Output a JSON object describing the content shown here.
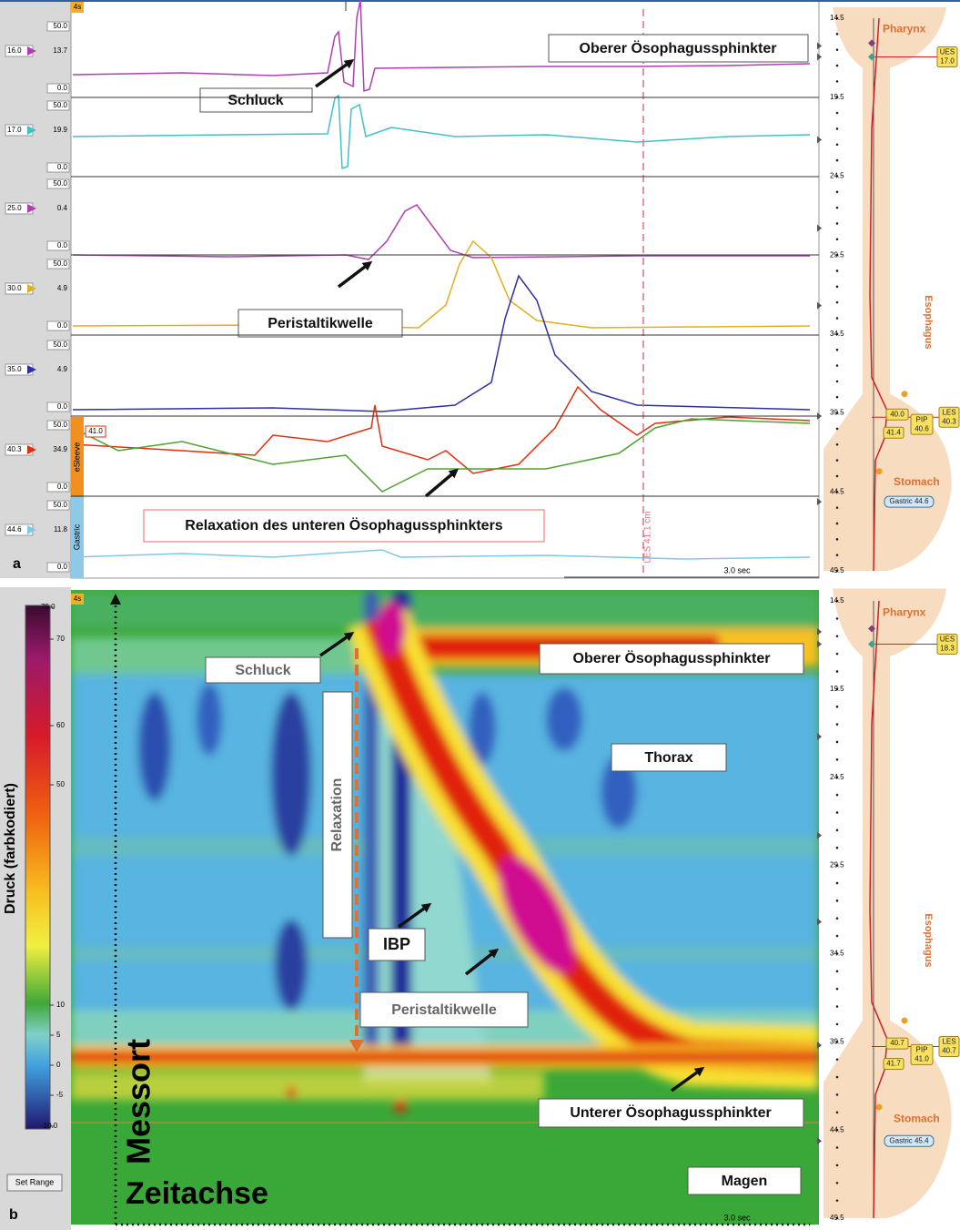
{
  "panel_a": {
    "letter": "a",
    "time_label": "4s",
    "channels": [
      {
        "position": "16.0",
        "value": "13.7",
        "max": "50.0",
        "min": "0.0"
      },
      {
        "position": "17.0",
        "value": "19.9",
        "max": "50.0",
        "min": "0.0"
      },
      {
        "position": "25.0",
        "value": "0.4",
        "max": "50.0",
        "min": "0.0"
      },
      {
        "position": "30.0",
        "value": "4.9",
        "max": "50.0",
        "min": "0.0"
      },
      {
        "position": "35.0",
        "value": "4.9",
        "max": "50.0",
        "min": "0.0"
      },
      {
        "position": "40.3",
        "value": "34.9",
        "max": "50.0",
        "min": "0.0"
      },
      {
        "position": "44.6",
        "value": "11.8",
        "max": "50.0",
        "min": "0.0"
      }
    ],
    "esleeve": {
      "label": "eSleeve",
      "value": "41.0"
    },
    "gastric_label": "Gastric",
    "les_marker": "LES 41.1 cm",
    "time_scale": "3.0 sec",
    "annotations": {
      "ues": "Oberer Ösophagussphinkter",
      "swallow": "Schluck",
      "peristalsis": "Peristaltikwelle",
      "les_relaxation": "Relaxation des unteren Ösophagussphinkters"
    }
  },
  "anatomy_a": {
    "depths": [
      "14.5",
      "19.5",
      "24.5",
      "29.5",
      "34.5",
      "39.5",
      "44.5",
      "49.5"
    ],
    "regions": {
      "pharynx": "Pharynx",
      "esophagus": "Esophagus",
      "stomach": "Stomach"
    },
    "ues": {
      "label": "UES",
      "value": "17.0"
    },
    "les": {
      "label": "LES",
      "value": "40.3"
    },
    "pip": {
      "label": "PIP",
      "value": "40.6"
    },
    "les_top": "40.0",
    "les_bottom": "41.4",
    "gastric": "Gastric 44.6"
  },
  "panel_b": {
    "letter": "b",
    "time_label": "4s",
    "colorbar": {
      "title": "Druck (farbkodiert)",
      "ticks": [
        "75.0",
        "70",
        "60",
        "50",
        "10",
        "5",
        "0",
        "-5",
        "-10.0"
      ],
      "button": "Set Range"
    },
    "annotations": {
      "swallow": "Schluck",
      "ues": "Oberer Ösophagussphinkter",
      "thorax": "Thorax",
      "relaxation": "Relaxation",
      "ibp": "IBP",
      "peristalsis": "Peristaltikwelle",
      "les": "Unterer Ösophagussphinkter",
      "stomach": "Magen"
    },
    "axes": {
      "position": "Messort",
      "time": "Zeitachse"
    },
    "time_scale": "3.0 sec"
  },
  "anatomy_b": {
    "depths": [
      "14.5",
      "19.5",
      "24.5",
      "29.5",
      "34.5",
      "39.5",
      "44.5",
      "49.5"
    ],
    "regions": {
      "pharynx": "Pharynx",
      "esophagus": "Esophagus",
      "stomach": "Stomach"
    },
    "ues": {
      "label": "UES",
      "value": "18.3"
    },
    "les": {
      "label": "LES",
      "value": "40.7"
    },
    "pip": {
      "label": "PIP",
      "value": "41.0"
    },
    "les_top": "40.7",
    "les_bottom": "41.7",
    "gastric": "Gastric 45.4"
  }
}
